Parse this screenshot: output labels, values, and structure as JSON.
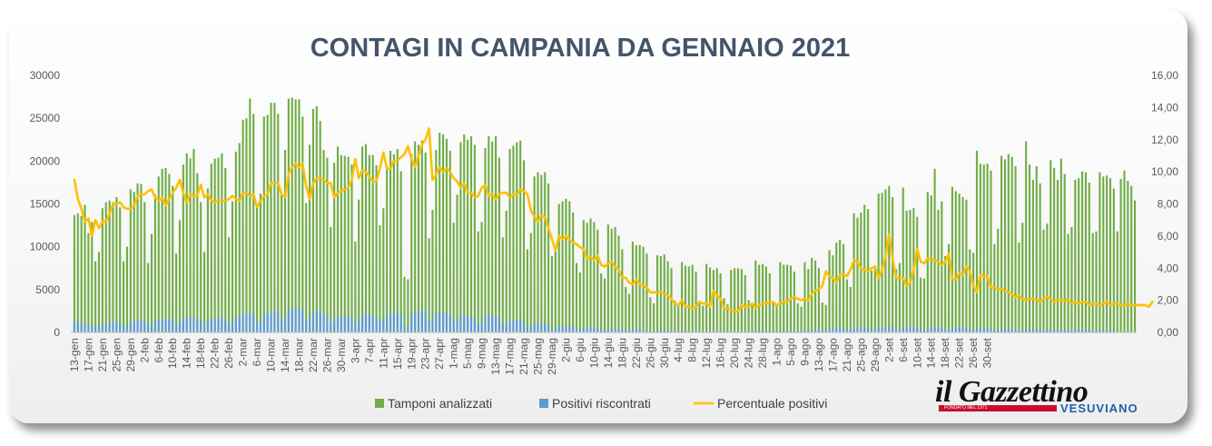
{
  "chart_data": {
    "type": "bar",
    "title": "CONTAGI IN CAMPANIA DA GENNAIO 2021",
    "y_left": {
      "min": 0,
      "max": 30000,
      "step": 5000,
      "tick_labels": [
        "0",
        "5000",
        "10000",
        "15000",
        "20000",
        "25000",
        "30000"
      ]
    },
    "y_right": {
      "min": 0,
      "max": 16,
      "step": 2,
      "tick_labels": [
        "0,00",
        "2,00",
        "4,00",
        "6,00",
        "8,00",
        "10,00",
        "12,00",
        "14,00",
        "16,00"
      ]
    },
    "x_tick_labels": [
      "13-gen",
      "17-gen",
      "21-gen",
      "25-gen",
      "29-gen",
      "2-feb",
      "6-feb",
      "10-feb",
      "14-feb",
      "18-feb",
      "22-feb",
      "26-feb",
      "2-mar",
      "6-mar",
      "10-mar",
      "14-mar",
      "18-mar",
      "22-mar",
      "26-mar",
      "30-mar",
      "3-apr",
      "7-apr",
      "11-apr",
      "15-apr",
      "19-apr",
      "23-apr",
      "27-apr",
      "1-mag",
      "5-mag",
      "9-mag",
      "13-mag",
      "17-mag",
      "21-mag",
      "25-mag",
      "29-mag",
      "2-giu",
      "6-giu",
      "10-giu",
      "14-giu",
      "18-giu",
      "22-giu",
      "26-giu",
      "30-giu",
      "4-lug",
      "8-lug",
      "12-lug",
      "16-lug",
      "20-lug",
      "24-lug",
      "28-lug",
      "1-ago",
      "5-ago",
      "9-ago",
      "13-ago",
      "17-ago",
      "21-ago",
      "25-ago",
      "29-ago",
      "2-set",
      "6-set",
      "10-set",
      "14-set",
      "18-set",
      "22-set",
      "26-set",
      "30-set"
    ],
    "days_per_tick": 4,
    "series": [
      {
        "name": "Tamponi analizzati",
        "kind": "bar",
        "axis": "left",
        "color": "#70ad47",
        "values": [
          13700,
          13900,
          13600,
          14900,
          11600,
          12900,
          8300,
          9400,
          14500,
          15200,
          15400,
          15200,
          15800,
          14600,
          8300,
          10000,
          16700,
          16400,
          17400,
          17300,
          15200,
          8100,
          11500,
          16100,
          18200,
          19100,
          19200,
          18500,
          17100,
          9200,
          13100,
          19600,
          20900,
          20300,
          21400,
          18600,
          15200,
          9400,
          16800,
          19700,
          20300,
          20400,
          20900,
          19200,
          11100,
          15300,
          21100,
          22100,
          24800,
          25000,
          27300,
          25500,
          14800,
          16200,
          25200,
          25400,
          26800,
          26800,
          25500,
          16100,
          21300,
          27300,
          27400,
          27200,
          27200,
          25200,
          15100,
          21900,
          26100,
          26400,
          24700,
          21300,
          20400,
          12300,
          19800,
          21700,
          20700,
          20600,
          20500,
          19600,
          10600,
          15500,
          21700,
          22000,
          20700,
          20700,
          19500,
          12500,
          14500,
          19400,
          21200,
          20800,
          21400,
          18800,
          6500,
          6200,
          20800,
          22300,
          21900,
          22400,
          21000,
          11000,
          14300,
          21300,
          23300,
          23100,
          22600,
          21200,
          12800,
          16100,
          22200,
          23100,
          22500,
          22900,
          21900,
          11800,
          12900,
          21500,
          22900,
          22300,
          22900,
          20400,
          11100,
          14200,
          21400,
          21800,
          22200,
          22400,
          20100,
          9700,
          11600,
          18200,
          18700,
          18400,
          18700,
          17400,
          8900,
          9500,
          15000,
          15300,
          15600,
          15300,
          14000,
          8100,
          7000,
          13100,
          12800,
          13300,
          12900,
          12000,
          6900,
          6300,
          12600,
          12100,
          12300,
          11300,
          9700,
          5300,
          4500,
          10600,
          10200,
          10200,
          10000,
          9200,
          4100,
          3400,
          9000,
          8900,
          9100,
          8300,
          7500,
          3700,
          3300,
          8200,
          7800,
          7700,
          7900,
          7100,
          3700,
          3100,
          8000,
          7600,
          7300,
          7500,
          6900,
          4000,
          3300,
          7300,
          7500,
          7500,
          7400,
          6700,
          3800,
          3400,
          8400,
          7900,
          8000,
          7700,
          6900,
          3500,
          3100,
          8200,
          7900,
          7900,
          7800,
          7100,
          3400,
          3000,
          8200,
          7400,
          8700,
          8400,
          7500,
          3500,
          3200,
          9600,
          9000,
          10500,
          10800,
          10300,
          6200,
          5300,
          13900,
          13400,
          14000,
          14900,
          14400,
          7200,
          7700,
          16200,
          16300,
          16700,
          17100,
          15800,
          7400,
          8100,
          16900,
          14200,
          14300,
          14500,
          13500,
          6400,
          6300,
          16400,
          16000,
          19100,
          14300,
          15300,
          8900,
          10300,
          17000,
          16500,
          16200,
          15800,
          15500,
          9700,
          9300,
          21200,
          19700,
          19600,
          19700,
          18900,
          10300,
          12100,
          20600,
          20200,
          20800,
          20500,
          19400,
          10500,
          12800,
          22300,
          19600,
          17800,
          19400,
          17400,
          12000,
          12700,
          20100,
          19200,
          17800,
          20300,
          18500,
          11500,
          12300,
          17800,
          18000,
          18800,
          18700,
          17500,
          11600,
          11800,
          18700,
          18200,
          18300,
          18000,
          16800,
          11800,
          17900,
          18900,
          17700,
          17100,
          15400
        ]
      },
      {
        "name": "Positivi riscontrati",
        "kind": "bar",
        "axis": "left",
        "color": "#5b9bd5",
        "values": [
          1300,
          1150,
          1050,
          1030,
          820,
          770,
          580,
          610,
          1000,
          1050,
          1140,
          1220,
          1270,
          1180,
          650,
          770,
          1290,
          1300,
          1470,
          1480,
          1310,
          710,
          1020,
          1360,
          1500,
          1600,
          1510,
          1530,
          1480,
          830,
          1250,
          1710,
          1700,
          1750,
          1820,
          1590,
          1400,
          790,
          1450,
          1610,
          1640,
          1680,
          1720,
          1580,
          920,
          1300,
          1760,
          1810,
          2160,
          2180,
          2330,
          2200,
          1160,
          1330,
          2150,
          2180,
          2490,
          2490,
          2380,
          1390,
          1780,
          2700,
          2810,
          2850,
          2810,
          2650,
          1370,
          1820,
          2440,
          2540,
          2380,
          2030,
          1900,
          1150,
          1670,
          1880,
          1830,
          1830,
          1850,
          1860,
          1140,
          1490,
          2190,
          2190,
          2000,
          1940,
          1840,
          1280,
          1620,
          1970,
          2170,
          2230,
          2300,
          2040,
          720,
          720,
          2240,
          2290,
          2400,
          2630,
          2520,
          1430,
          1560,
          2280,
          2400,
          2350,
          2260,
          2110,
          1230,
          1520,
          2000,
          2000,
          1900,
          1880,
          1720,
          1000,
          1150,
          1940,
          1960,
          1900,
          1900,
          1720,
          930,
          1110,
          1530,
          1540,
          1510,
          1480,
          1290,
          560,
          660,
          1080,
          1070,
          1030,
          1020,
          920,
          450,
          460,
          740,
          760,
          770,
          750,
          670,
          390,
          330,
          590,
          590,
          580,
          540,
          490,
          280,
          250,
          470,
          450,
          450,
          420,
          360,
          200,
          160,
          380,
          360,
          350,
          320,
          280,
          150,
          120,
          260,
          240,
          230,
          210,
          190,
          90,
          80,
          160,
          150,
          140,
          140,
          130,
          60,
          55,
          130,
          120,
          110,
          110,
          100,
          60,
          55,
          130,
          130,
          130,
          120,
          110,
          70,
          70,
          200,
          190,
          190,
          180,
          160,
          90,
          90,
          220,
          230,
          230,
          220,
          200,
          100,
          110,
          270,
          260,
          280,
          330,
          340,
          240,
          200,
          540,
          470,
          480,
          510,
          480,
          260,
          310,
          600,
          550,
          580,
          580,
          550,
          320,
          400,
          690,
          610,
          640,
          670,
          620,
          330,
          360,
          630,
          620,
          650,
          610,
          560,
          290,
          300,
          600,
          570,
          630,
          580,
          560,
          360,
          410,
          600,
          580,
          590,
          560,
          570,
          330,
          360,
          520,
          490,
          480,
          450,
          430,
          230,
          280,
          440,
          410,
          390,
          380,
          370,
          210,
          250,
          420,
          370,
          360,
          370,
          340,
          200,
          230,
          370,
          350,
          330,
          340,
          330,
          200,
          220,
          350,
          340,
          330,
          320,
          320,
          200,
          210,
          330,
          320,
          310,
          300,
          290
        ]
      },
      {
        "name": "Percentuale positivi",
        "kind": "line",
        "axis": "right",
        "color": "#ffc000",
        "values": [
          9.5,
          8.3,
          7.7,
          6.9,
          7.1,
          6,
          7,
          6.5,
          6.9,
          6.9,
          7.4,
          8,
          8,
          8.1,
          7.8,
          7.7,
          7.7,
          7.9,
          8.5,
          8.6,
          8.6,
          8.8,
          8.9,
          8.4,
          8.2,
          8.4,
          7.9,
          8.3,
          8.7,
          9,
          9.5,
          8.7,
          8.1,
          8.6,
          8.5,
          8.5,
          9.2,
          8.4,
          8.6,
          8.2,
          8.1,
          8.2,
          8.2,
          8.2,
          8.3,
          8.5,
          8.3,
          8.2,
          8.7,
          8.7,
          8.5,
          8.6,
          7.8,
          8.2,
          8.5,
          8.6,
          9.3,
          9.3,
          9.3,
          8.6,
          8.4,
          9.9,
          10.3,
          10.5,
          10.3,
          10.5,
          9.1,
          8.3,
          9.3,
          9.6,
          9.6,
          9.5,
          9.3,
          9.3,
          8.4,
          8.7,
          8.8,
          8.9,
          9,
          9.5,
          10.8,
          9.6,
          10.1,
          10,
          9.7,
          9.4,
          9.4,
          10.2,
          11.2,
          10.2,
          10.2,
          10.7,
          10.7,
          10.9,
          11.1,
          11.6,
          10.8,
          10.3,
          11,
          11.7,
          12,
          12.7,
          9.5,
          9.8,
          10.3,
          10,
          10.2,
          10,
          9.6,
          9.4,
          9,
          9.3,
          8.7,
          8.7,
          8.4,
          8.5,
          9,
          9.2,
          8.5,
          8.6,
          8.3,
          8.6,
          8.7,
          8.7,
          8.4,
          8.6,
          8.6,
          8.9,
          8.8,
          8.6,
          7.6,
          7.2,
          6.9,
          7.3,
          7.2,
          6.5,
          5.8,
          5.1,
          6,
          5.8,
          6,
          5.8,
          5.6,
          5.5,
          5.3,
          5.2,
          4.6,
          4.7,
          4.5,
          4.8,
          4.2,
          4.1,
          4.3,
          4.4,
          4.1,
          3.9,
          3.4,
          3.4,
          3.1,
          3,
          3.3,
          3,
          2.9,
          2.8,
          2.5,
          2.5,
          2.5,
          2.5,
          2.4,
          2.3,
          2.1,
          1.8,
          1.7,
          2,
          1.6,
          1.6,
          1.5,
          1.6,
          1.9,
          1.8,
          1.8,
          1.6,
          2.6,
          2.3,
          2.1,
          1.5,
          1.5,
          1.4,
          1.3,
          1.3,
          1.7,
          1.6,
          1.6,
          1.8,
          1.5,
          1.7,
          1.8,
          1.8,
          1.9,
          1.9,
          1.7,
          1.8,
          1.9,
          1.9,
          2.1,
          2.2,
          2.1,
          2,
          2.1,
          2,
          2.4,
          2.6,
          2.7,
          2.9,
          3.8,
          3.5,
          3.4,
          3.1,
          3.6,
          3.6,
          3.5,
          3.9,
          4.5,
          4.4,
          4,
          3.9,
          3.8,
          4,
          4.1,
          3.4,
          3.9,
          4.7,
          6.1,
          4.6,
          3.4,
          3.4,
          3.4,
          2.9,
          3.1,
          3.9,
          5.2,
          4.4,
          4.3,
          4.6,
          4.6,
          4.5,
          4.4,
          4.2,
          4.4,
          4.9,
          3.3,
          3.3,
          3.7,
          3.6,
          4.1,
          3.8,
          2.9,
          2.5,
          3.6,
          3.5,
          3.5,
          2.8,
          2.8,
          2.7,
          2.7,
          2.6,
          2.5,
          2.4,
          2.2,
          2.3,
          2.1,
          2,
          2.1,
          2.1,
          2,
          1.9,
          2.1,
          2.2,
          2.1,
          1.9,
          2,
          2,
          2,
          2,
          1.8,
          1.9,
          1.8,
          1.9,
          1.9,
          1.7,
          1.8,
          1.8,
          1.7,
          1.8,
          1.9,
          1.7,
          1.8,
          1.8,
          1.7,
          1.7,
          1.8,
          1.7,
          1.7,
          1.7,
          1.7,
          1.7,
          1.6,
          1.9
        ]
      }
    ],
    "legend": {
      "position": "bottom",
      "entries": [
        {
          "label": "Tamponi analizzati",
          "color": "#70ad47",
          "marker": "box"
        },
        {
          "label": "Positivi riscontrati",
          "color": "#5b9bd5",
          "marker": "box"
        },
        {
          "label": "Percentuale positivi",
          "color": "#ffc000",
          "marker": "line"
        }
      ]
    },
    "grid": false
  },
  "logo": {
    "name": "il Gazzettino",
    "subtitle": "VESUVIANO",
    "tagline": "FONDATO NEL 1971"
  }
}
